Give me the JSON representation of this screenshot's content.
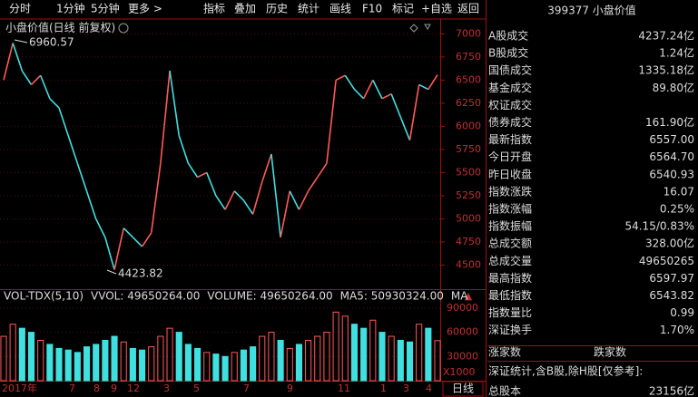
{
  "toolbar": {
    "left": [
      "分时",
      "1分钟",
      "5分钟",
      "更多 >"
    ],
    "right": [
      "指标",
      "叠加",
      "历史",
      "统计",
      "画线",
      "F10",
      "标记",
      "+自选",
      "返回"
    ]
  },
  "chart_data": [
    {
      "type": "line",
      "title": "小盘价值(日线 前复权)",
      "color": "#ff5a5a",
      "down_color": "#40e0e0",
      "values": [
        6500,
        6900,
        6600,
        6450,
        6550,
        6300,
        6200,
        5900,
        5600,
        5300,
        5000,
        4800,
        4450,
        4900,
        4800,
        4700,
        4850,
        5600,
        6600,
        5900,
        5600,
        5450,
        5500,
        5250,
        5100,
        5300,
        5200,
        5050,
        5400,
        5700,
        4800,
        5300,
        5100,
        5300,
        5450,
        5600,
        6500,
        6550,
        6400,
        6300,
        6500,
        6300,
        6350,
        6100,
        5850,
        6450,
        6400,
        6557
      ],
      "ylim": [
        4250,
        7150
      ],
      "yticks": [
        7000,
        6750,
        6500,
        6250,
        6000,
        5750,
        5500,
        5250,
        5000,
        4750,
        4500
      ],
      "annotations": [
        "6960.57",
        "4423.82"
      ],
      "x_labels": [
        "2017年",
        "7",
        "8",
        "9",
        "12",
        "3",
        "5",
        "7",
        "9",
        "11",
        "1",
        "3",
        "4"
      ],
      "period": "日线"
    },
    {
      "type": "bar",
      "legend": [
        {
          "text": "VOL-TDX(5,10)",
          "color": "#dddddd"
        },
        {
          "text": "VVOL: 49650264.00",
          "color": "#dddddd"
        },
        {
          "text": "VOLUME: 49650264.00",
          "color": "#f0f000"
        },
        {
          "text": "MA5: 50930324.00",
          "color": "#ff40ff"
        },
        {
          "text": "MA",
          "color": "#c040ff"
        }
      ],
      "values": [
        55000,
        70000,
        65000,
        60000,
        50000,
        45000,
        40000,
        38000,
        35000,
        42000,
        45000,
        50000,
        55000,
        48000,
        40000,
        38000,
        42000,
        55000,
        65000,
        60000,
        45000,
        40000,
        35000,
        33000,
        30000,
        35000,
        38000,
        42000,
        55000,
        60000,
        50000,
        40000,
        45000,
        50000,
        55000,
        60000,
        85000,
        80000,
        70000,
        65000,
        75000,
        60000,
        55000,
        50000,
        48000,
        70000,
        65000,
        49650
      ],
      "ylim": [
        0,
        100000
      ],
      "yticks": [
        90000,
        60000,
        30000
      ],
      "unit_label": "X1000"
    }
  ],
  "quote_panel": {
    "header": "399377 小盘价值",
    "rows": [
      {
        "label": "A股成交",
        "value": "4237.24亿",
        "color": "#f0f000"
      },
      {
        "label": "B股成交",
        "value": "1.24亿",
        "color": "#f0f000"
      },
      {
        "label": "国债成交",
        "value": "1335.18亿",
        "color": "#f0f000"
      },
      {
        "label": "基金成交",
        "value": "89.80亿",
        "color": "#f0f000"
      },
      {
        "label": "权证成交"
      },
      {
        "label": "债券成交",
        "value": "161.90亿",
        "color": "#f0f000"
      },
      {
        "label": "最新指数",
        "value": "6557.00",
        "color": "#ff4040"
      },
      {
        "label": "今日开盘",
        "value": "6564.70",
        "color": "#ff4040"
      },
      {
        "label": "昨日收盘",
        "value": "6540.93",
        "color": "#ffffff"
      },
      {
        "label": "指数涨跌",
        "value": "16.07",
        "color": "#ff4040"
      },
      {
        "label": "指数涨幅",
        "value": "0.25%",
        "color": "#ff4040"
      },
      {
        "label": "指数振幅",
        "value": "54.15/0.83%",
        "color": "#ffffff"
      },
      {
        "label": "总成交额",
        "value": "328.00亿",
        "color": "#f0f000"
      },
      {
        "label": "总成交量",
        "value": "49650265",
        "color": "#f0f000"
      },
      {
        "label": "最高指数",
        "value": "6597.97",
        "color": "#ff4040"
      },
      {
        "label": "最低指数",
        "value": "6543.82",
        "color": "#ff4040"
      },
      {
        "label": "指数量比",
        "value": "0.99",
        "color": "#30e030"
      },
      {
        "label": "深证换手",
        "value": "1.70%",
        "color": "#ffffff"
      }
    ],
    "breadth": [
      "涨家数",
      "跌家数"
    ],
    "note": "深证统计,含B股,除H股[仅参考]:",
    "total": {
      "label": "总股本",
      "value": "23156亿"
    }
  }
}
